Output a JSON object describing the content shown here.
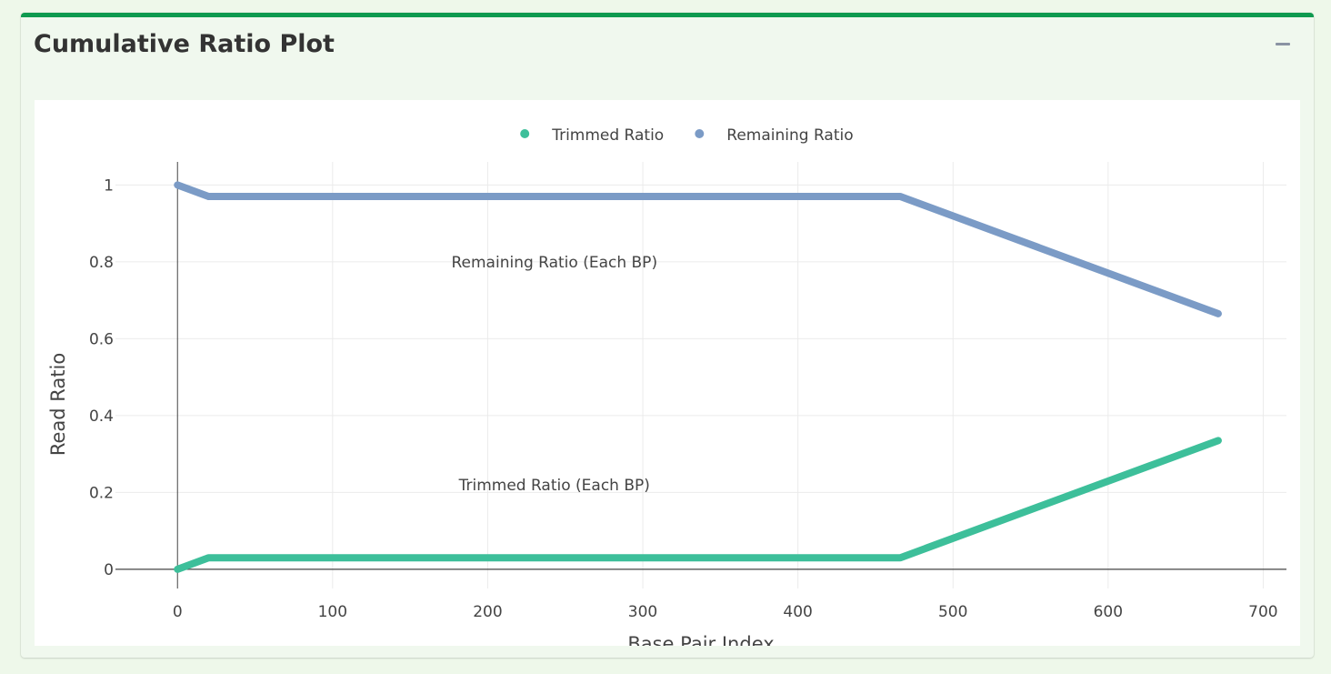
{
  "card": {
    "title": "Cumulative Ratio Plot",
    "collapse_icon": "minus-icon",
    "accent_color": "#0e9a4f"
  },
  "chart_data": {
    "type": "line",
    "xlabel": "Base Pair Index",
    "ylabel": "Read Ratio",
    "xlim": [
      -40,
      715
    ],
    "ylim": [
      -0.05,
      1.06
    ],
    "xticks": [
      0,
      100,
      200,
      300,
      400,
      500,
      600,
      700
    ],
    "yticks": [
      0,
      0.2,
      0.4,
      0.6,
      0.8,
      1
    ],
    "ytick_labels": [
      "0",
      "0.2",
      "0.4",
      "0.6",
      "0.8",
      "1"
    ],
    "grid": true,
    "legend_position": "top-center",
    "series": [
      {
        "name": "Trimmed Ratio",
        "color": "#3dbf9a",
        "x": [
          0,
          20,
          466,
          671
        ],
        "y": [
          0,
          0.03,
          0.03,
          0.335
        ]
      },
      {
        "name": "Remaining Ratio",
        "color": "#7b9bc6",
        "x": [
          0,
          20,
          466,
          671
        ],
        "y": [
          1,
          0.97,
          0.97,
          0.665
        ]
      }
    ],
    "annotations": [
      {
        "text": "Remaining Ratio (Each BP)",
        "x": 243,
        "y": 0.8
      },
      {
        "text": "Trimmed Ratio (Each BP)",
        "x": 243,
        "y": 0.22
      }
    ]
  }
}
